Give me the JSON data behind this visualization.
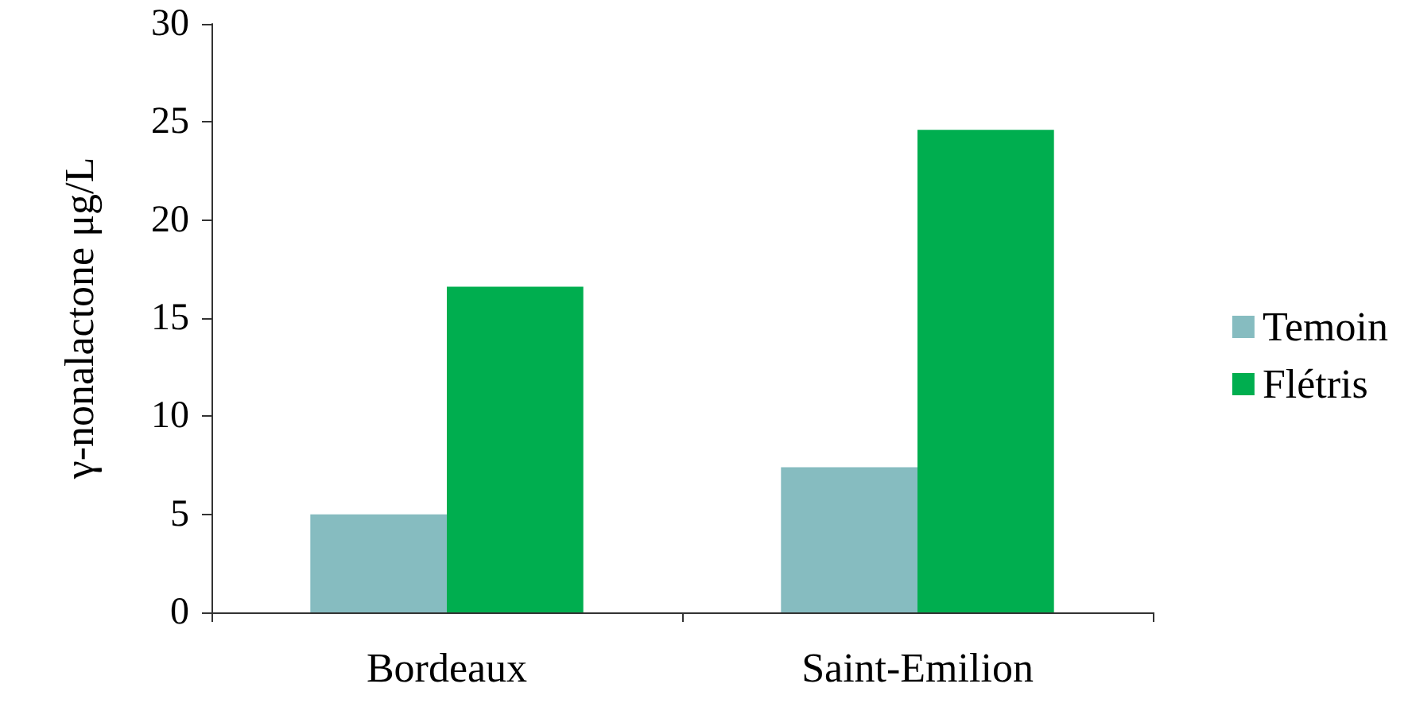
{
  "chart_data": {
    "type": "bar",
    "ylabel": "γ-nonalactone μg/L",
    "categories": [
      "Bordeaux",
      "Saint-Emilion"
    ],
    "series": [
      {
        "name": "Temoin",
        "color": "#86bcc0",
        "values": [
          5.0,
          7.4
        ]
      },
      {
        "name": "Flétris",
        "color": "#00ae4f",
        "values": [
          16.6,
          24.6
        ]
      }
    ],
    "ylim": [
      0,
      30
    ],
    "yticks": [
      0,
      5,
      10,
      15,
      20,
      25,
      30
    ],
    "grid": false,
    "legend": "right"
  }
}
